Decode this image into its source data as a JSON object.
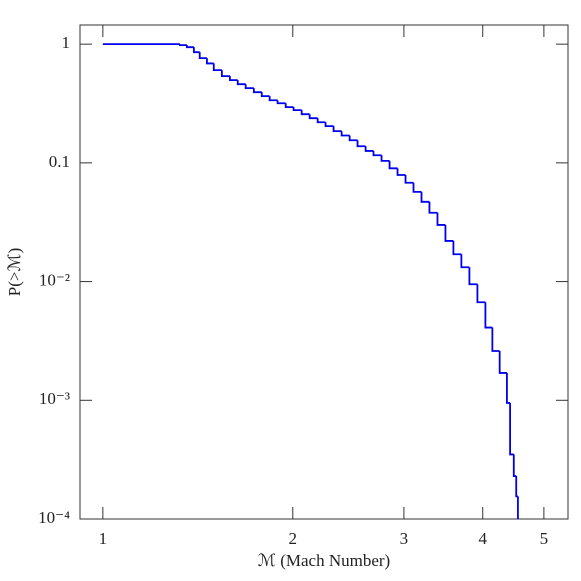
{
  "chart_data": {
    "type": "step",
    "x_label": "ℳ (Mach Number)",
    "y_label": "P(>ℳ)",
    "log_x": true,
    "log_y": true,
    "xlim": [
      0.92,
      5.46
    ],
    "ylim": [
      0.0001,
      1.45
    ],
    "xticks": [
      1,
      2,
      3,
      4,
      5
    ],
    "yticks": [
      {
        "value": 1,
        "label": "1"
      },
      {
        "value": 0.1,
        "label": "0.1"
      },
      {
        "value": 0.01,
        "label": "10⁻²"
      },
      {
        "value": 0.001,
        "label": "10⁻³"
      },
      {
        "value": 0.0001,
        "label": "10⁻⁴"
      }
    ],
    "color": "#0000ee",
    "x": [
      1.0,
      1.325,
      1.359,
      1.394,
      1.424,
      1.462,
      1.499,
      1.544,
      1.59,
      1.636,
      1.684,
      1.735,
      1.786,
      1.838,
      1.892,
      1.949,
      2.006,
      2.066,
      2.127,
      2.19,
      2.254,
      2.321,
      2.39,
      2.461,
      2.533,
      2.609,
      2.685,
      2.765,
      2.847,
      2.931,
      3.018,
      3.107,
      3.199,
      3.293,
      3.391,
      3.491,
      3.594,
      3.7,
      3.81,
      3.923,
      4.039,
      4.143,
      4.255,
      4.369,
      4.42,
      4.48,
      4.52,
      4.548
    ],
    "values": [
      1,
      0.981,
      0.943,
      0.856,
      0.763,
      0.688,
      0.604,
      0.538,
      0.498,
      0.46,
      0.426,
      0.394,
      0.365,
      0.337,
      0.318,
      0.295,
      0.278,
      0.257,
      0.238,
      0.22,
      0.204,
      0.185,
      0.17,
      0.155,
      0.138,
      0.126,
      0.116,
      0.104,
      0.09,
      0.079,
      0.068,
      0.057,
      0.047,
      0.038,
      0.03,
      0.022,
      0.017,
      0.0132,
      0.0095,
      0.0067,
      0.0041,
      0.0026,
      0.0017,
      0.00095,
      0.00035,
      0.00023,
      0.000155,
      0.0001
    ]
  }
}
